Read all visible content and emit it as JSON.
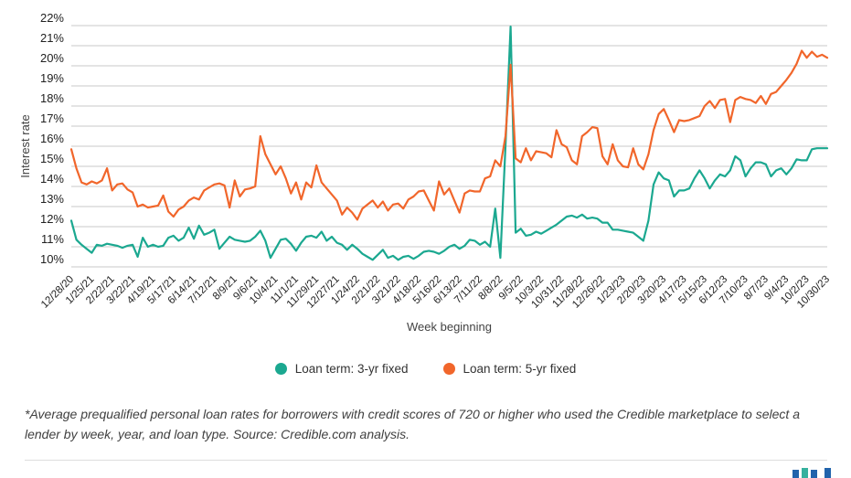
{
  "chart_data": {
    "type": "line",
    "title": "",
    "xlabel": "Week beginning",
    "ylabel": "Interest rate",
    "ylim": [
      10,
      22
    ],
    "y_tick_step": 1,
    "y_tick_suffix": "%",
    "grid": true,
    "legend_position": "bottom",
    "points_per_tick": 4,
    "categories": [
      "12/28/20",
      "1/25/21",
      "2/22/21",
      "3/22/21",
      "4/19/21",
      "5/17/21",
      "6/14/21",
      "7/12/21",
      "8/9/21",
      "9/6/21",
      "10/4/21",
      "11/1/21",
      "11/29/21",
      "12/27/21",
      "1/24/22",
      "2/21/22",
      "3/21/22",
      "4/18/22",
      "5/16/22",
      "6/13/22",
      "7/11/22",
      "8/8/22",
      "9/5/22",
      "10/3/22",
      "10/31/22",
      "11/28/22",
      "12/26/22",
      "1/23/23",
      "2/20/23",
      "3/20/23",
      "4/17/23",
      "5/15/23",
      "6/12/23",
      "7/10/23",
      "8/7/23",
      "9/4/23",
      "10/2/23",
      "10/30/23"
    ],
    "series": [
      {
        "name": "Loan term: 3-yr fixed",
        "color": "#1BA890",
        "values": [
          12.3,
          11.35,
          11.1,
          10.9,
          10.7,
          11.1,
          11.05,
          11.15,
          11.1,
          11.05,
          10.95,
          11.05,
          11.1,
          10.5,
          11.45,
          11.0,
          11.1,
          11.0,
          11.05,
          11.45,
          11.55,
          11.3,
          11.45,
          11.95,
          11.4,
          12.05,
          11.6,
          11.7,
          11.85,
          10.9,
          11.2,
          11.5,
          11.35,
          11.3,
          11.25,
          11.3,
          11.5,
          11.8,
          11.3,
          10.45,
          10.9,
          11.35,
          11.4,
          11.15,
          10.8,
          11.2,
          11.5,
          11.55,
          11.45,
          11.75,
          11.3,
          11.5,
          11.2,
          11.1,
          10.85,
          11.1,
          10.9,
          10.65,
          10.5,
          10.35,
          10.6,
          10.85,
          10.45,
          10.55,
          10.35,
          10.5,
          10.55,
          10.4,
          10.55,
          10.75,
          10.8,
          10.75,
          10.65,
          10.8,
          11.0,
          11.1,
          10.9,
          11.05,
          11.35,
          11.3,
          11.1,
          11.25,
          11.0,
          12.9,
          10.45,
          16.0,
          21.95,
          11.7,
          11.9,
          11.55,
          11.6,
          11.75,
          11.65,
          11.8,
          11.95,
          12.1,
          12.3,
          12.5,
          12.55,
          12.45,
          12.6,
          12.4,
          12.45,
          12.4,
          12.2,
          12.2,
          11.85,
          11.85,
          11.8,
          11.75,
          11.7,
          11.5,
          11.3,
          12.3,
          14.1,
          14.7,
          14.4,
          14.3,
          13.5,
          13.8,
          13.8,
          13.9,
          14.4,
          14.8,
          14.4,
          13.9,
          14.3,
          14.6,
          14.5,
          14.8,
          15.5,
          15.3,
          14.5,
          14.9,
          15.2,
          15.2,
          15.1,
          14.5,
          14.8,
          14.9,
          14.6,
          14.9,
          15.35,
          15.3,
          15.3,
          15.85,
          15.9,
          15.9,
          15.9
        ]
      },
      {
        "name": "Loan term: 5-yr fixed",
        "color": "#F1662B",
        "values": [
          15.85,
          14.9,
          14.2,
          14.1,
          14.25,
          14.15,
          14.3,
          14.9,
          13.8,
          14.1,
          14.15,
          13.85,
          13.7,
          13.0,
          13.1,
          12.95,
          13.0,
          13.05,
          13.55,
          12.75,
          12.5,
          12.85,
          13.0,
          13.3,
          13.45,
          13.35,
          13.8,
          13.95,
          14.1,
          14.15,
          14.05,
          12.95,
          14.3,
          13.5,
          13.85,
          13.9,
          14.0,
          16.5,
          15.6,
          15.1,
          14.6,
          15.0,
          14.4,
          13.65,
          14.2,
          13.35,
          14.2,
          13.95,
          15.05,
          14.2,
          13.9,
          13.6,
          13.3,
          12.6,
          12.95,
          12.7,
          12.35,
          12.9,
          13.1,
          13.3,
          12.95,
          13.25,
          12.8,
          13.1,
          13.15,
          12.9,
          13.35,
          13.5,
          13.75,
          13.8,
          13.3,
          12.8,
          14.25,
          13.6,
          13.9,
          13.3,
          12.7,
          13.65,
          13.8,
          13.75,
          13.75,
          14.4,
          14.5,
          15.3,
          15.0,
          16.5,
          20.05,
          15.4,
          15.2,
          15.9,
          15.3,
          15.75,
          15.7,
          15.65,
          15.45,
          16.8,
          16.1,
          15.95,
          15.3,
          15.1,
          16.5,
          16.7,
          16.95,
          16.9,
          15.5,
          15.1,
          16.1,
          15.3,
          15.0,
          14.95,
          15.9,
          15.1,
          14.85,
          15.6,
          16.8,
          17.6,
          17.85,
          17.3,
          16.7,
          17.3,
          17.25,
          17.3,
          17.4,
          17.5,
          18.0,
          18.25,
          17.9,
          18.3,
          18.35,
          17.2,
          18.3,
          18.45,
          18.35,
          18.3,
          18.15,
          18.5,
          18.1,
          18.6,
          18.7,
          19.0,
          19.3,
          19.65,
          20.1,
          20.75,
          20.4,
          20.7,
          20.45,
          20.55,
          20.4
        ]
      }
    ]
  },
  "footnote": "*Average prequalified personal loan rates for borrowers with credit scores of 720 or higher who used the Credible marketplace to select a lender by week, year, and loan type. Source: Credible.com analysis.",
  "logo": {
    "bar_colors": [
      "#2163AC",
      "#36B19E",
      "#2163AC",
      "#2163AC"
    ]
  }
}
